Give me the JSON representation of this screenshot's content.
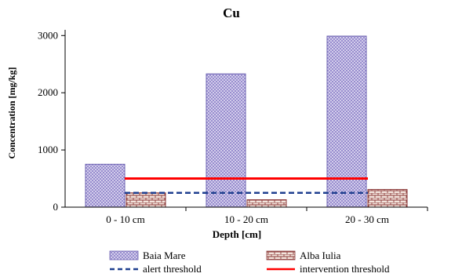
{
  "chart_data": {
    "type": "bar",
    "title": "Cu",
    "xlabel": "Depth [cm]",
    "ylabel": "Concentration [mg/kg]",
    "categories": [
      "0 - 10 cm",
      "10 - 20 cm",
      "20 - 30 cm"
    ],
    "ylim": [
      0,
      3100
    ],
    "yticks": [
      0,
      1000,
      2000,
      3000
    ],
    "series": [
      {
        "name": "Baia Mare",
        "values": [
          750,
          2330,
          2990
        ],
        "color": "#9a8fd0",
        "pattern": "crosshatch-dots"
      },
      {
        "name": "Alba Iulia",
        "values": [
          250,
          130,
          310
        ],
        "color": "#8b3a3a",
        "pattern": "brick"
      }
    ],
    "lines": [
      {
        "name": "alert threshold",
        "value": 250,
        "color": "#1f3f8f",
        "style": "dashed"
      },
      {
        "name": "intervention threshold",
        "value": 500,
        "color": "#ff0000",
        "style": "solid"
      }
    ],
    "grid": false,
    "legend_position": "bottom"
  }
}
